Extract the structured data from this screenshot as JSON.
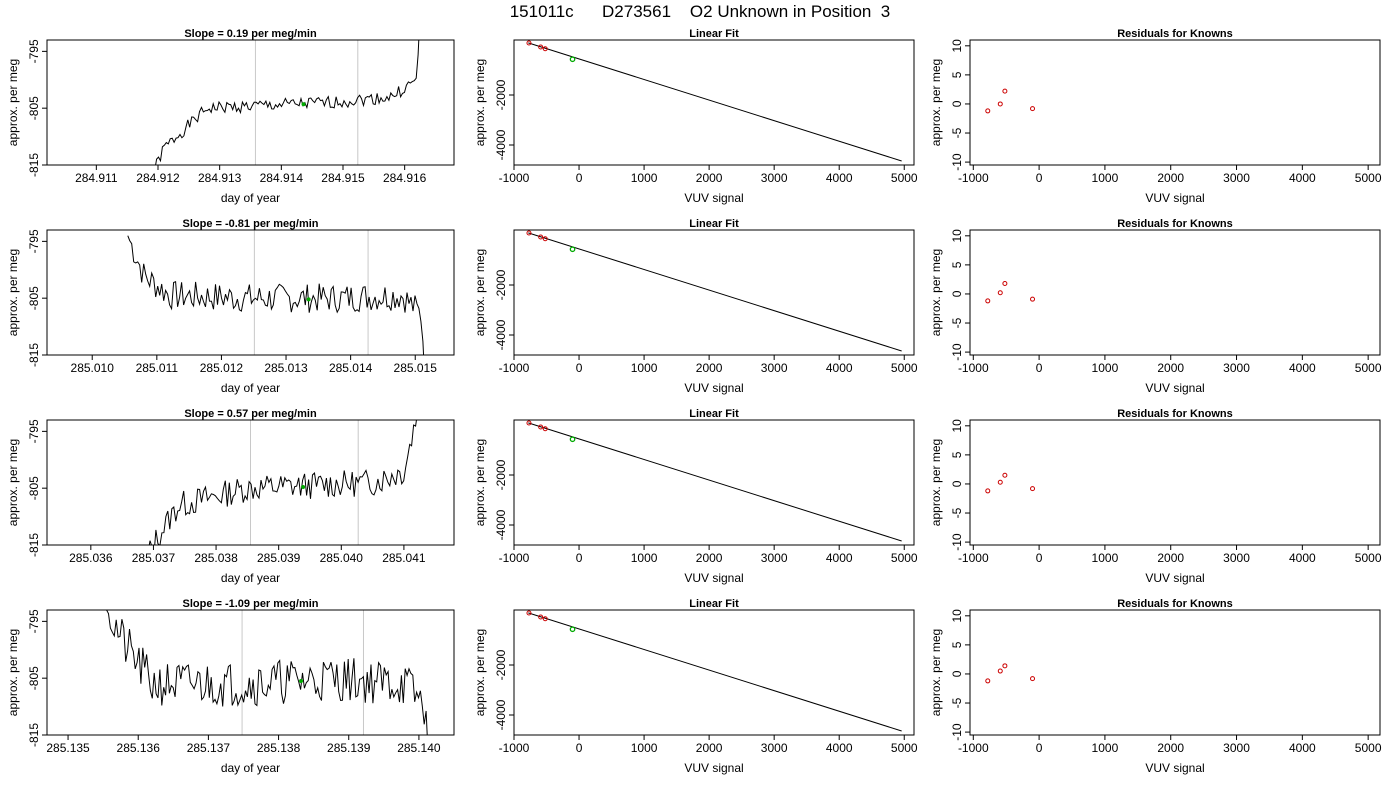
{
  "figure_title": "151011c      D273561    O2 Unknown in Position  3",
  "chart_data": [
    {
      "type": "line",
      "title": "Slope =  0.19  per meg/min",
      "xlabel": "day of year",
      "ylabel": "approx. per meg",
      "xlim": [
        284.9102,
        284.9168
      ],
      "ylim": [
        -815,
        -793
      ],
      "xticks": [
        "284.911",
        "284.912",
        "284.913",
        "284.914",
        "284.915",
        "284.916"
      ],
      "yticks": [
        "-795",
        "-805",
        "-815"
      ],
      "vlines": [
        284.91358,
        284.91524
      ],
      "start": 284.91185,
      "end": 284.91625,
      "points": 140,
      "amplitude": 1.1,
      "seed": 1,
      "levels": [
        [
          284.91185,
          -818
        ],
        [
          284.9121,
          -812
        ],
        [
          284.9124,
          -809
        ],
        [
          284.9128,
          -805
        ],
        [
          284.9138,
          -804.5
        ],
        [
          284.9148,
          -804
        ],
        [
          284.9158,
          -803
        ],
        [
          284.9162,
          -800
        ],
        [
          284.91625,
          -788
        ]
      ],
      "highlight": {
        "x": 284.91436,
        "y": -804.3
      }
    },
    {
      "type": "line",
      "title": "Slope =  -0.81  per meg/min",
      "xlabel": "day of year",
      "ylabel": "approx. per meg",
      "xlim": [
        285.0093,
        285.0156
      ],
      "ylim": [
        -815,
        -793
      ],
      "xticks": [
        "285.010",
        "285.011",
        "285.012",
        "285.013",
        "285.014",
        "285.015"
      ],
      "yticks": [
        "-795",
        "-805",
        "-815"
      ],
      "vlines": [
        285.01251,
        285.01427
      ],
      "start": 285.01055,
      "end": 285.01515,
      "points": 150,
      "amplitude": 2.6,
      "seed": 7,
      "levels": [
        [
          285.01055,
          -794
        ],
        [
          285.0108,
          -801
        ],
        [
          285.0112,
          -804.5
        ],
        [
          285.0125,
          -805
        ],
        [
          285.0138,
          -805
        ],
        [
          285.0148,
          -804.5
        ],
        [
          285.0151,
          -808
        ],
        [
          285.01515,
          -820
        ]
      ],
      "highlight": {
        "x": 285.01335,
        "y": -805.2
      }
    },
    {
      "type": "line",
      "title": "Slope =  0.57  per meg/min",
      "xlabel": "day of year",
      "ylabel": "approx. per meg",
      "xlim": [
        285.0353,
        285.0418
      ],
      "ylim": [
        -815,
        -793
      ],
      "xticks": [
        "285.036",
        "285.037",
        "285.038",
        "285.039",
        "285.040",
        "285.041"
      ],
      "yticks": [
        "-795",
        "-805",
        "-815"
      ],
      "vlines": [
        285.03855,
        285.04027
      ],
      "start": 285.03685,
      "end": 285.04125,
      "points": 140,
      "amplitude": 2.4,
      "seed": 13,
      "levels": [
        [
          285.03685,
          -818
        ],
        [
          285.0371,
          -813
        ],
        [
          285.0374,
          -808
        ],
        [
          285.0385,
          -805
        ],
        [
          285.0395,
          -804.5
        ],
        [
          285.0405,
          -804
        ],
        [
          285.041,
          -802
        ],
        [
          285.04125,
          -790
        ]
      ],
      "highlight": {
        "x": 285.03939,
        "y": -804.8
      }
    },
    {
      "type": "line",
      "title": "Slope =  -1.09  per meg/min",
      "xlabel": "day of year",
      "ylabel": "approx. per meg",
      "xlim": [
        285.1347,
        285.1405
      ],
      "ylim": [
        -815,
        -793
      ],
      "xticks": [
        "285.135",
        "285.136",
        "285.137",
        "285.138",
        "285.139",
        "285.140"
      ],
      "yticks": [
        "-795",
        "-805",
        "-815"
      ],
      "vlines": [
        285.13748,
        285.13921
      ],
      "start": 285.13555,
      "end": 285.14013,
      "points": 170,
      "amplitude": 4.0,
      "seed": 21,
      "levels": [
        [
          285.13555,
          -793
        ],
        [
          285.1358,
          -799
        ],
        [
          285.1362,
          -806
        ],
        [
          285.1375,
          -806
        ],
        [
          285.1388,
          -805
        ],
        [
          285.1398,
          -806
        ],
        [
          285.1401,
          -810
        ],
        [
          285.14013,
          -818
        ]
      ],
      "highlight": {
        "x": 285.13832,
        "y": -805.5
      }
    },
    {
      "type": "scatter",
      "title": "Linear Fit",
      "xlabel": "VUV signal",
      "ylabel": "approx. per meg",
      "xlim": [
        -1000,
        5150
      ],
      "ylim": [
        -4800,
        200
      ],
      "xticks": [
        "-1000",
        "0",
        "1000",
        "2000",
        "3000",
        "4000",
        "5000"
      ],
      "yticks": [
        "-2000",
        "-4000"
      ],
      "knowns": {
        "x": [
          -770,
          -590,
          -520
        ],
        "y": [
          80,
          -80,
          -150
        ]
      },
      "unknown": {
        "x": [
          -100
        ],
        "y": [
          -570
        ]
      },
      "fit": {
        "x": [
          -780,
          4960
        ],
        "y": [
          85,
          -4640
        ]
      }
    },
    {
      "type": "scatter",
      "title": "Linear Fit",
      "xlabel": "VUV signal",
      "ylabel": "approx. per meg",
      "xlim": [
        -1000,
        5150
      ],
      "ylim": [
        -4800,
        200
      ],
      "xticks": [
        "-1000",
        "0",
        "1000",
        "2000",
        "3000",
        "4000",
        "5000"
      ],
      "yticks": [
        "-2000",
        "-4000"
      ],
      "knowns": {
        "x": [
          -770,
          -590,
          -520
        ],
        "y": [
          80,
          -80,
          -150
        ]
      },
      "unknown": {
        "x": [
          -100
        ],
        "y": [
          -570
        ]
      },
      "fit": {
        "x": [
          -780,
          4960
        ],
        "y": [
          85,
          -4640
        ]
      }
    },
    {
      "type": "scatter",
      "title": "Linear Fit",
      "xlabel": "VUV signal",
      "ylabel": "approx. per meg",
      "xlim": [
        -1000,
        5150
      ],
      "ylim": [
        -4800,
        200
      ],
      "xticks": [
        "-1000",
        "0",
        "1000",
        "2000",
        "3000",
        "4000",
        "5000"
      ],
      "yticks": [
        "-2000",
        "-4000"
      ],
      "knowns": {
        "x": [
          -770,
          -590,
          -520
        ],
        "y": [
          80,
          -80,
          -150
        ]
      },
      "unknown": {
        "x": [
          -100
        ],
        "y": [
          -570
        ]
      },
      "fit": {
        "x": [
          -780,
          4960
        ],
        "y": [
          85,
          -4640
        ]
      }
    },
    {
      "type": "scatter",
      "title": "Linear Fit",
      "xlabel": "VUV signal",
      "ylabel": "approx. per meg",
      "xlim": [
        -1000,
        5150
      ],
      "ylim": [
        -4800,
        200
      ],
      "xticks": [
        "-1000",
        "0",
        "1000",
        "2000",
        "3000",
        "4000",
        "5000"
      ],
      "yticks": [
        "-2000",
        "-4000"
      ],
      "knowns": {
        "x": [
          -770,
          -590,
          -520
        ],
        "y": [
          80,
          -80,
          -150
        ]
      },
      "unknown": {
        "x": [
          -100
        ],
        "y": [
          -570
        ]
      },
      "fit": {
        "x": [
          -780,
          4960
        ],
        "y": [
          85,
          -4640
        ]
      }
    },
    {
      "type": "scatter",
      "title": "Residuals for Knowns",
      "xlabel": "VUV signal",
      "ylabel": "approx. per meg",
      "xlim": [
        -1050,
        5180
      ],
      "ylim": [
        -10.5,
        11
      ],
      "xticks": [
        "-1000",
        "0",
        "1000",
        "2000",
        "3000",
        "4000",
        "5000"
      ],
      "yticks": [
        "10",
        "5",
        "0",
        "-5",
        "-10"
      ],
      "knowns": {
        "x": [
          -780,
          -590,
          -520,
          -100
        ],
        "y": [
          -1.2,
          0.0,
          2.2,
          -0.8
        ]
      }
    },
    {
      "type": "scatter",
      "title": "Residuals for Knowns",
      "xlabel": "VUV signal",
      "ylabel": "approx. per meg",
      "xlim": [
        -1050,
        5180
      ],
      "ylim": [
        -10.5,
        11
      ],
      "xticks": [
        "-1000",
        "0",
        "1000",
        "2000",
        "3000",
        "4000",
        "5000"
      ],
      "yticks": [
        "10",
        "5",
        "0",
        "-5",
        "-10"
      ],
      "knowns": {
        "x": [
          -780,
          -590,
          -520,
          -100
        ],
        "y": [
          -1.2,
          0.2,
          1.8,
          -0.9
        ]
      }
    },
    {
      "type": "scatter",
      "title": "Residuals for Knowns",
      "xlabel": "VUV signal",
      "ylabel": "approx. per meg",
      "xlim": [
        -1050,
        5180
      ],
      "ylim": [
        -10.5,
        11
      ],
      "xticks": [
        "-1000",
        "0",
        "1000",
        "2000",
        "3000",
        "4000",
        "5000"
      ],
      "yticks": [
        "10",
        "5",
        "0",
        "-5",
        "-10"
      ],
      "knowns": {
        "x": [
          -780,
          -590,
          -520,
          -100
        ],
        "y": [
          -1.2,
          0.3,
          1.5,
          -0.8
        ]
      }
    },
    {
      "type": "scatter",
      "title": "Residuals for Knowns",
      "xlabel": "VUV signal",
      "ylabel": "approx. per meg",
      "xlim": [
        -1050,
        5180
      ],
      "ylim": [
        -10.5,
        11
      ],
      "xticks": [
        "-1000",
        "0",
        "1000",
        "2000",
        "3000",
        "4000",
        "5000"
      ],
      "yticks": [
        "10",
        "5",
        "0",
        "-5",
        "-10"
      ],
      "knowns": {
        "x": [
          -780,
          -590,
          -520,
          -100
        ],
        "y": [
          -1.2,
          0.5,
          1.4,
          -0.8
        ]
      }
    }
  ],
  "colors": {
    "line": "#000000",
    "knowns": "#cc0000",
    "unknown": "#00aa00",
    "vline": "#c8c8c8",
    "axis": "#000000"
  }
}
